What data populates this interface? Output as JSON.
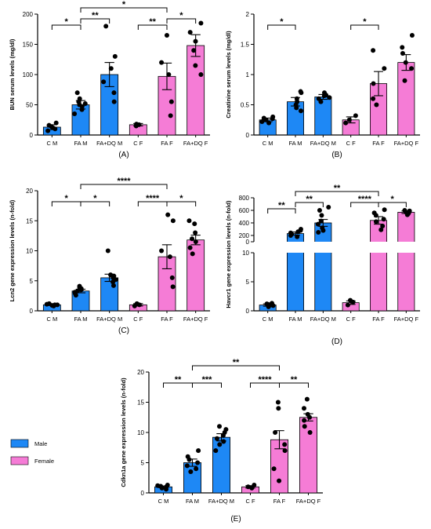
{
  "legend": [
    {
      "label": "Male",
      "color": "#1e88f5"
    },
    {
      "label": "Female",
      "color": "#f57cd6"
    }
  ],
  "chart_data": [
    {
      "type": "bar",
      "panel": "(A)",
      "ylabel": "BUN serum levels (mg/dl)",
      "categories": [
        "C M",
        "FA M",
        "FA+DQ M",
        "C F",
        "FA F",
        "FA+DQ F"
      ],
      "sex": [
        "Male",
        "Male",
        "Male",
        "Female",
        "Female",
        "Female"
      ],
      "values": [
        13,
        50,
        100,
        17,
        97,
        148
      ],
      "errors": [
        4,
        7,
        20,
        2,
        22,
        18
      ],
      "points": [
        [
          7,
          10,
          12,
          14,
          16,
          20
        ],
        [
          35,
          42,
          47,
          50,
          52,
          55,
          60,
          70
        ],
        [
          55,
          70,
          88,
          110,
          130,
          180
        ],
        [
          15,
          17,
          18
        ],
        [
          32,
          55,
          100,
          120,
          165
        ],
        [
          100,
          115,
          140,
          155,
          170,
          185
        ]
      ],
      "ylim": [
        0,
        200
      ],
      "yticks": [
        0,
        50,
        100,
        150,
        200
      ],
      "significance": [
        {
          "from": 0,
          "to": 1,
          "label": "*"
        },
        {
          "from": 1,
          "to": 2,
          "label": "**"
        },
        {
          "from": 3,
          "to": 4,
          "label": "**"
        },
        {
          "from": 4,
          "to": 5,
          "label": "*"
        },
        {
          "from": 1,
          "to": 4,
          "label": "*"
        }
      ]
    },
    {
      "type": "bar",
      "panel": "(B)",
      "ylabel": "Creatinine serum levels (mg/dl)",
      "categories": [
        "C M",
        "FA M",
        "FA+DQ M",
        "C F",
        "FA F",
        "FA+DQ F"
      ],
      "sex": [
        "Male",
        "Male",
        "Male",
        "Female",
        "Female",
        "Female"
      ],
      "values": [
        0.25,
        0.55,
        0.63,
        0.25,
        0.85,
        1.2
      ],
      "errors": [
        0.03,
        0.07,
        0.04,
        0.05,
        0.2,
        0.13
      ],
      "points": [
        [
          0.2,
          0.22,
          0.25,
          0.27,
          0.28,
          0.3
        ],
        [
          0.4,
          0.45,
          0.5,
          0.55,
          0.6,
          0.7,
          0.72
        ],
        [
          0.55,
          0.6,
          0.62,
          0.65,
          0.66,
          0.7
        ],
        [
          0.2,
          0.25,
          0.32
        ],
        [
          0.5,
          0.6,
          0.85,
          1.1,
          1.4
        ],
        [
          0.9,
          1.1,
          1.2,
          1.35,
          1.45,
          1.65
        ]
      ],
      "ylim": [
        0,
        2.0
      ],
      "yticks": [
        0.0,
        0.5,
        1.0,
        1.5,
        2.0
      ],
      "significance": [
        {
          "from": 0,
          "to": 1,
          "label": "*"
        },
        {
          "from": 3,
          "to": 4,
          "label": "*"
        }
      ]
    },
    {
      "type": "bar",
      "panel": "(C)",
      "ylabel": "Lcn2 gene expression levels (n-fold)",
      "categories": [
        "C M",
        "FA M",
        "FA+DQ M",
        "C F",
        "FA F",
        "FA+DQ F"
      ],
      "sex": [
        "Male",
        "Male",
        "Male",
        "Female",
        "Female",
        "Female"
      ],
      "values": [
        1,
        3.3,
        5.5,
        1,
        9,
        11.8
      ],
      "errors": [
        0.1,
        0.3,
        0.6,
        0.2,
        2,
        0.8
      ],
      "points": [
        [
          0.8,
          0.9,
          1,
          1,
          1.1,
          1.2
        ],
        [
          2.6,
          2.9,
          3.1,
          3.3,
          3.5,
          3.7,
          3.9,
          4.1
        ],
        [
          4.2,
          4.8,
          5.2,
          5.5,
          5.8,
          6,
          10
        ],
        [
          0.8,
          1,
          1.2
        ],
        [
          4,
          5.5,
          9,
          10,
          15,
          16
        ],
        [
          9.5,
          10.5,
          11.5,
          12,
          13,
          14.5,
          15
        ]
      ],
      "ylim": [
        0,
        20
      ],
      "yticks": [
        0,
        5,
        10,
        15,
        20
      ],
      "significance": [
        {
          "from": 0,
          "to": 1,
          "label": "*"
        },
        {
          "from": 1,
          "to": 2,
          "label": "*"
        },
        {
          "from": 3,
          "to": 4,
          "label": "****"
        },
        {
          "from": 4,
          "to": 5,
          "label": "*"
        },
        {
          "from": 1,
          "to": 4,
          "label": "****"
        }
      ]
    },
    {
      "type": "bar",
      "panel": "(D)",
      "ylabel": "Havcr1 gene expression levels (n-fold)",
      "categories": [
        "C M",
        "FA M",
        "FA+DQ M",
        "C F",
        "FA F",
        "FA+DQ F"
      ],
      "sex": [
        "Male",
        "Male",
        "Male",
        "Female",
        "Female",
        "Female"
      ],
      "values": [
        1,
        230,
        400,
        1.4,
        440,
        570
      ],
      "errors": [
        0.2,
        25,
        55,
        0.3,
        60,
        20
      ],
      "points": [
        [
          0.7,
          0.9,
          1,
          1.1,
          1.2,
          1.3
        ],
        [
          180,
          200,
          220,
          240,
          260,
          280,
          300
        ],
        [
          250,
          280,
          320,
          380,
          430,
          520,
          600,
          650
        ],
        [
          1,
          1.5,
          1.8
        ],
        [
          290,
          350,
          420,
          460,
          520,
          560,
          610
        ],
        [
          530,
          550,
          570,
          580,
          590,
          600
        ]
      ],
      "broken_axis": true,
      "ylim_lower": [
        0,
        10
      ],
      "yticks_lower": [
        0,
        5,
        10
      ],
      "ylim_upper": [
        0,
        800
      ],
      "yticks_upper": [
        0,
        200,
        400,
        600,
        800
      ],
      "significance": [
        {
          "from": 0,
          "to": 1,
          "label": "**"
        },
        {
          "from": 1,
          "to": 2,
          "label": "**"
        },
        {
          "from": 3,
          "to": 4,
          "label": "****"
        },
        {
          "from": 4,
          "to": 5,
          "label": "*"
        },
        {
          "from": 1,
          "to": 4,
          "label": "**"
        }
      ]
    },
    {
      "type": "bar",
      "panel": "(E)",
      "ylabel": "Cdkn1a gene expression levels (n-fold)",
      "categories": [
        "C M",
        "FA M",
        "FA+DQ M",
        "C F",
        "FA F",
        "FA+DQ F"
      ],
      "sex": [
        "Male",
        "Male",
        "Male",
        "Female",
        "Female",
        "Female"
      ],
      "values": [
        1,
        5,
        9.2,
        1,
        8.8,
        12.5
      ],
      "errors": [
        0.15,
        0.6,
        0.6,
        0.2,
        1.5,
        0.6
      ],
      "points": [
        [
          0.6,
          0.8,
          1,
          1.1,
          1.2,
          1.3
        ],
        [
          3.5,
          4,
          4.5,
          5,
          5.5,
          6,
          7
        ],
        [
          7,
          8,
          8.5,
          9,
          9.5,
          10,
          10.5,
          11
        ],
        [
          0.8,
          1,
          1.3
        ],
        [
          2,
          4,
          7,
          8,
          10,
          14,
          15
        ],
        [
          10,
          11,
          12,
          12.5,
          13,
          14,
          15.5
        ]
      ],
      "ylim": [
        0,
        20
      ],
      "yticks": [
        0,
        5,
        10,
        15,
        20
      ],
      "significance": [
        {
          "from": 0,
          "to": 1,
          "label": "**"
        },
        {
          "from": 1,
          "to": 2,
          "label": "***"
        },
        {
          "from": 3,
          "to": 4,
          "label": "****"
        },
        {
          "from": 4,
          "to": 5,
          "label": "**"
        },
        {
          "from": 1,
          "to": 4,
          "label": "**"
        }
      ]
    }
  ]
}
